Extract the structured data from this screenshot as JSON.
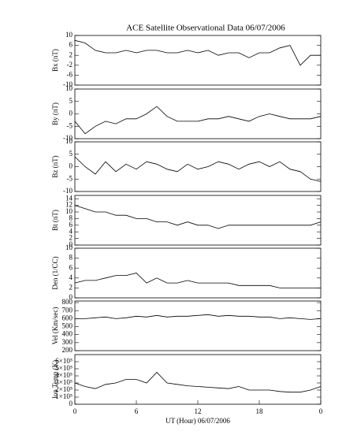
{
  "chart_data": [
    {
      "type": "line",
      "title": "ACE Satellite Observational Data   06/07/2006",
      "ylabel": "Bx (nT)",
      "color": "#000000",
      "x": [
        0,
        1,
        2,
        3,
        4,
        5,
        6,
        7,
        8,
        9,
        10,
        11,
        12,
        13,
        14,
        15,
        16,
        17,
        18,
        19,
        20,
        21,
        22,
        23,
        24
      ],
      "values": [
        8,
        7,
        4,
        3,
        3,
        4,
        3,
        4,
        4,
        3,
        3,
        4,
        3,
        4,
        2,
        3,
        3,
        1,
        3,
        3,
        5,
        6,
        -2,
        2,
        2
      ],
      "xlim": [
        0,
        24
      ],
      "ylim": [
        -10,
        10
      ],
      "yticks": [
        -10,
        -6,
        -2,
        2,
        6,
        10
      ]
    },
    {
      "type": "line",
      "ylabel": "By (nT)",
      "color": "#000000",
      "x": [
        0,
        1,
        2,
        3,
        4,
        5,
        6,
        7,
        8,
        9,
        10,
        11,
        12,
        13,
        14,
        15,
        16,
        17,
        18,
        19,
        20,
        21,
        22,
        23,
        24
      ],
      "values": [
        -3,
        -8,
        -5,
        -3,
        -4,
        -2,
        -2,
        0,
        3,
        -1,
        -3,
        -3,
        -3,
        -2,
        -2,
        -1,
        -2,
        -3,
        -1,
        0,
        -1,
        -2,
        -2,
        -2,
        -1
      ],
      "xlim": [
        0,
        24
      ],
      "ylim": [
        -10,
        10
      ],
      "yticks": [
        -10,
        -5,
        0,
        5,
        10
      ]
    },
    {
      "type": "line",
      "ylabel": "Bz (nT)",
      "color": "#000000",
      "x": [
        0,
        1,
        2,
        3,
        4,
        5,
        6,
        7,
        8,
        9,
        10,
        11,
        12,
        13,
        14,
        15,
        16,
        17,
        18,
        19,
        20,
        21,
        22,
        23,
        24
      ],
      "values": [
        4,
        0,
        -3,
        2,
        -2,
        1,
        -1,
        2,
        1,
        -1,
        -2,
        1,
        -1,
        0,
        2,
        1,
        -1,
        1,
        2,
        0,
        2,
        -1,
        -2,
        -5,
        -6
      ],
      "xlim": [
        0,
        24
      ],
      "ylim": [
        -10,
        10
      ],
      "yticks": [
        -10,
        -5,
        0,
        5,
        10
      ]
    },
    {
      "type": "line",
      "ylabel": "Bt (nT)",
      "color": "#000000",
      "x": [
        0,
        1,
        2,
        3,
        4,
        5,
        6,
        7,
        8,
        9,
        10,
        11,
        12,
        13,
        14,
        15,
        16,
        17,
        18,
        19,
        20,
        21,
        22,
        23,
        24
      ],
      "values": [
        12,
        11,
        10,
        10,
        9,
        9,
        8,
        8,
        7,
        7,
        6,
        7,
        6,
        6,
        5,
        6,
        6,
        6,
        6,
        6,
        6,
        6,
        6,
        6,
        7
      ],
      "xlim": [
        0,
        24
      ],
      "ylim": [
        0,
        15
      ],
      "yticks": [
        0,
        2,
        4,
        6,
        8,
        10,
        12,
        14
      ]
    },
    {
      "type": "line",
      "ylabel": "Den (1/CC)",
      "color": "#000000",
      "x": [
        0,
        1,
        2,
        3,
        4,
        5,
        6,
        7,
        8,
        9,
        10,
        11,
        12,
        13,
        14,
        15,
        16,
        17,
        18,
        19,
        20,
        21,
        22,
        23,
        24
      ],
      "values": [
        3,
        3.5,
        3.5,
        4,
        4.5,
        4.5,
        5,
        3,
        4,
        3,
        3,
        3.5,
        3,
        3,
        3,
        3,
        2.5,
        2.5,
        2.5,
        2.5,
        2,
        2,
        2,
        2,
        2
      ],
      "xlim": [
        0,
        24
      ],
      "ylim": [
        0,
        10
      ],
      "yticks": [
        0,
        2,
        4,
        6,
        8,
        10
      ]
    },
    {
      "type": "line",
      "ylabel": "Vel (Km/sec)",
      "color": "#000000",
      "x": [
        0,
        1,
        2,
        3,
        4,
        5,
        6,
        7,
        8,
        9,
        10,
        11,
        12,
        13,
        14,
        15,
        16,
        17,
        18,
        19,
        20,
        21,
        22,
        23,
        24
      ],
      "values": [
        600,
        600,
        610,
        620,
        600,
        610,
        630,
        620,
        640,
        620,
        630,
        630,
        640,
        650,
        630,
        640,
        630,
        630,
        620,
        620,
        600,
        610,
        600,
        590,
        600
      ],
      "xlim": [
        0,
        24
      ],
      "ylim": [
        200,
        820
      ],
      "yticks": [
        200,
        300,
        400,
        500,
        600,
        700,
        800
      ]
    },
    {
      "type": "line",
      "ylabel": "Ion Temp (K)",
      "xlabel": "UT (Hour)   06/07/2006",
      "color": "#000000",
      "x": [
        0,
        1,
        2,
        3,
        4,
        5,
        6,
        7,
        8,
        9,
        10,
        11,
        12,
        13,
        14,
        15,
        16,
        17,
        18,
        19,
        20,
        21,
        22,
        23,
        24
      ],
      "values": [
        300000,
        250000,
        220000,
        280000,
        300000,
        350000,
        350000,
        300000,
        450000,
        300000,
        280000,
        260000,
        250000,
        240000,
        230000,
        220000,
        250000,
        200000,
        200000,
        200000,
        180000,
        170000,
        170000,
        200000,
        250000
      ],
      "xlim": [
        0,
        24
      ],
      "ylim": [
        0,
        700000
      ],
      "yticks": [
        0,
        {
          "value": 100000,
          "label": "1×10⁵"
        },
        {
          "value": 200000,
          "label": "2×10⁵"
        },
        {
          "value": 300000,
          "label": "3×10⁵"
        },
        {
          "value": 400000,
          "label": "4×10⁵"
        },
        {
          "value": 500000,
          "label": "5×10⁵"
        },
        {
          "value": 600000,
          "label": "6×10⁵"
        }
      ],
      "xticks": [
        0,
        6,
        12,
        18,
        {
          "value": 24,
          "label": "0"
        }
      ]
    }
  ]
}
